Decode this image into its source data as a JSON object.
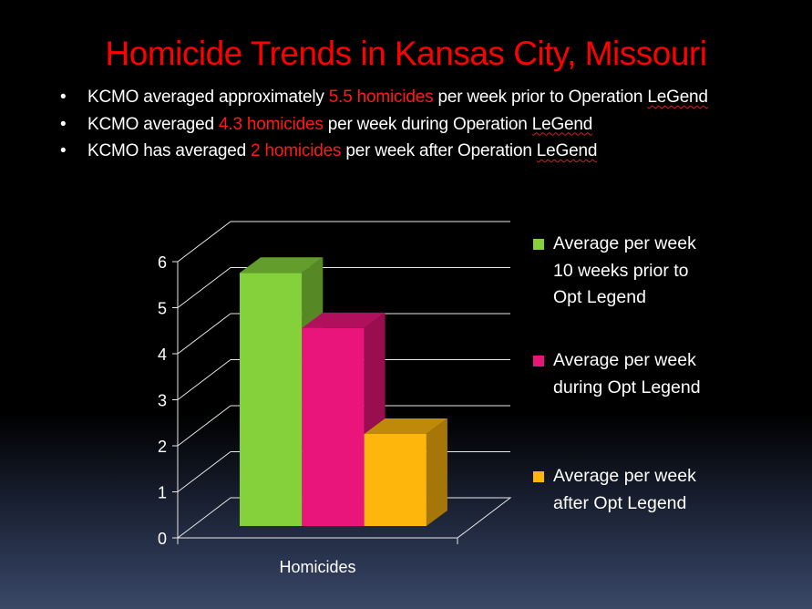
{
  "slide": {
    "title": "Homicide Trends in Kansas City, Missouri",
    "bullets": [
      {
        "pre": "KCMO averaged approximately ",
        "hl": "5.5 homicides",
        "post": " per week  prior to Operation ",
        "sq": "LeGend"
      },
      {
        "pre": "KCMO averaged ",
        "hl": "4.3 homicides",
        "post": " per week during Operation ",
        "sq": "LeGend"
      },
      {
        "pre": "KCMO has averaged ",
        "hl": "2 homicides",
        "post": " per week after Operation ",
        "sq": "LeGend"
      }
    ],
    "colors": {
      "title": "#ff0000",
      "highlight": "#ff1a1a",
      "text": "#ffffff"
    }
  },
  "chart_data": {
    "type": "bar",
    "style": "3d-clustered-column",
    "categories": [
      "Homicides"
    ],
    "series": [
      {
        "name": "Average per week 10 weeks prior to Opt Legend",
        "legend_lines": [
          "Average per week",
          "10 weeks prior to",
          "Opt Legend"
        ],
        "values": [
          5.5
        ],
        "color": "#84d13b"
      },
      {
        "name": "Average per week during Opt Legend",
        "legend_lines": [
          "Average per week",
          "during Opt Legend"
        ],
        "values": [
          4.3
        ],
        "color": "#ea157a"
      },
      {
        "name": "Average per week after Opt Legend",
        "legend_lines": [
          "Average per week",
          "after Opt Legend"
        ],
        "values": [
          2
        ],
        "color": "#ffb60c"
      }
    ],
    "yticks": [
      "0",
      "1",
      "2",
      "3",
      "4",
      "5",
      "6"
    ],
    "ylim": [
      0,
      6
    ],
    "grid": true,
    "legend_position": "right"
  }
}
